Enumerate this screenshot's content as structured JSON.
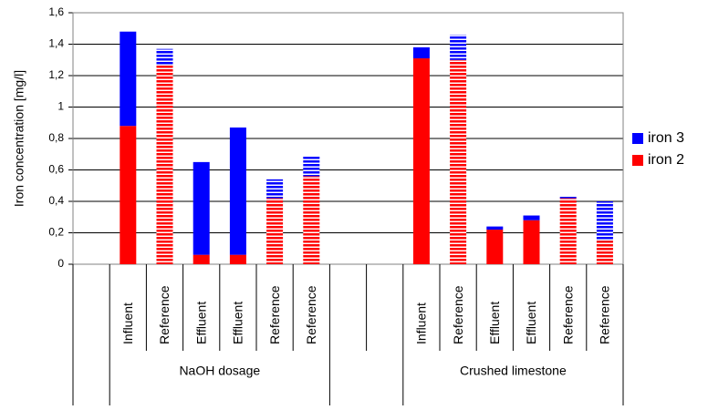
{
  "chart_data": {
    "type": "stacked-bar",
    "y_label": "Iron concentration [mg/l]",
    "categories": [
      null,
      "Influent",
      "Reference",
      "Effluent",
      "Effluent",
      "Reference",
      "Reference",
      null,
      null,
      "Influent",
      "Reference",
      "Effluent",
      "Effluent",
      "Reference",
      "Reference"
    ],
    "striped": [
      false,
      false,
      true,
      false,
      false,
      true,
      true,
      false,
      false,
      false,
      true,
      false,
      false,
      true,
      true
    ],
    "groups": [
      {
        "label": "NaOH dosage",
        "from": 1,
        "to": 6
      },
      {
        "label": "Crushed limestone",
        "from": 9,
        "to": 14
      }
    ],
    "series": [
      {
        "name": "iron 2",
        "color": "#ff0000",
        "values": [
          null,
          0.88,
          1.27,
          0.06,
          0.06,
          0.42,
          0.56,
          null,
          null,
          1.31,
          1.3,
          0.22,
          0.28,
          0.42,
          0.15
        ]
      },
      {
        "name": "iron 3",
        "color": "#0000ff",
        "values": [
          null,
          0.6,
          0.1,
          0.59,
          0.81,
          0.12,
          0.13,
          null,
          null,
          0.07,
          0.16,
          0.02,
          0.03,
          0.01,
          0.25
        ]
      }
    ],
    "ylim": [
      0,
      1.6
    ],
    "yticks": [
      0,
      {
        "value": 0.2,
        "label": "0,2"
      },
      {
        "value": 0.4,
        "label": "0,4"
      },
      {
        "value": 0.6,
        "label": "0,6"
      },
      {
        "value": 0.8,
        "label": "0,8"
      },
      1,
      {
        "value": 1.2,
        "label": "1,2"
      },
      {
        "value": 1.4,
        "label": "1,4"
      },
      {
        "value": 1.6,
        "label": "1,6"
      }
    ],
    "grid": true,
    "legend": "right"
  }
}
